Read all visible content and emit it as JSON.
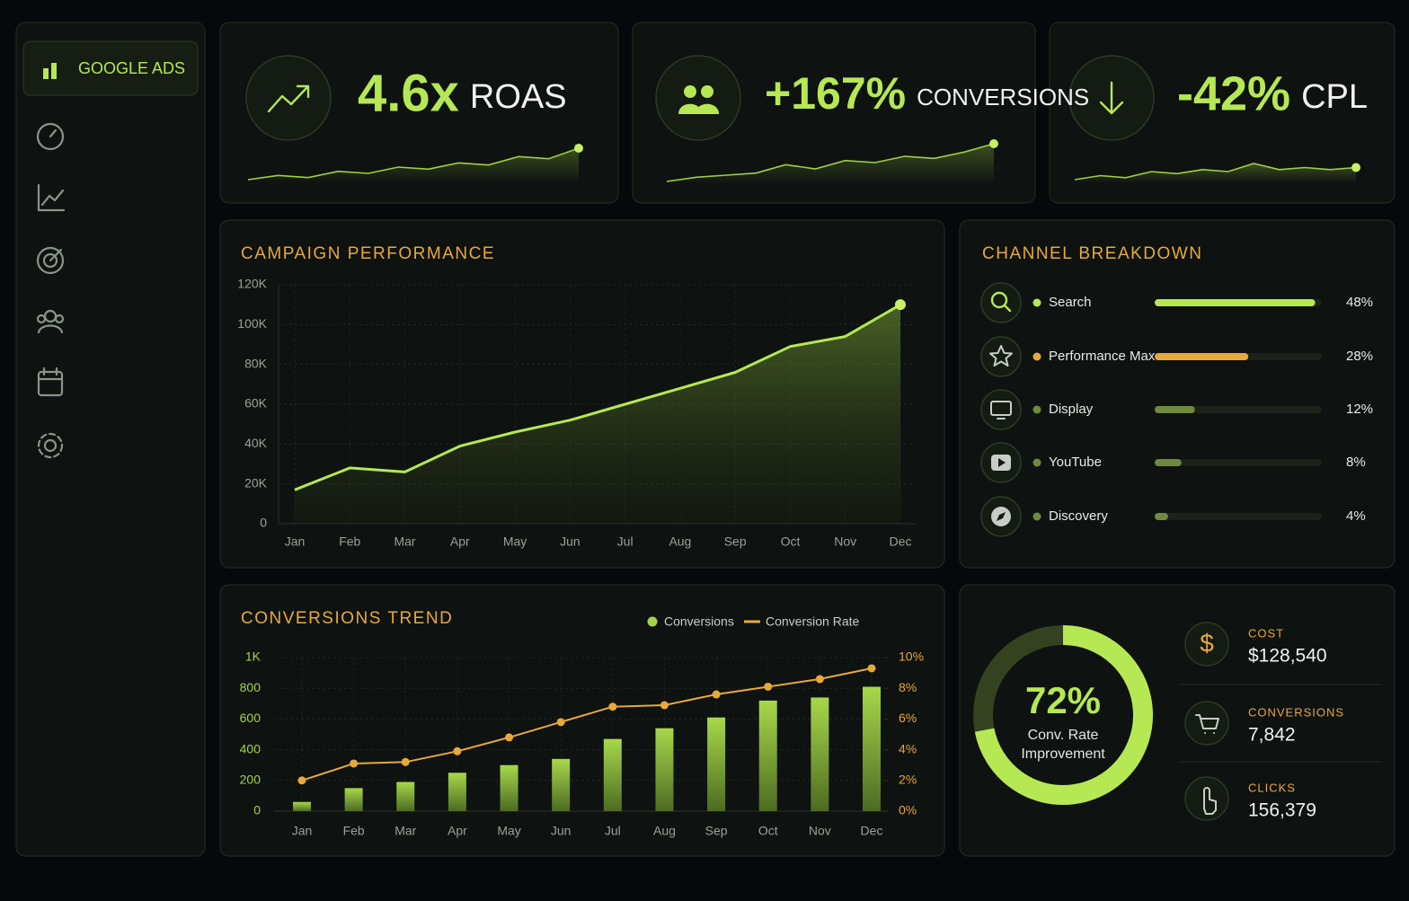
{
  "sidebar": {
    "brand": "GOOGLE ADS"
  },
  "kpis": [
    {
      "value": "4.6x",
      "label": "ROAS",
      "spark": [
        2,
        3,
        2.5,
        4,
        3.5,
        5,
        4.5,
        6,
        5.5,
        7.5,
        7,
        9.5
      ]
    },
    {
      "value": "+167%",
      "label": "CONVERSIONS",
      "spark": [
        1,
        2,
        2.5,
        3,
        5,
        4,
        6,
        5.5,
        7,
        6.5,
        8,
        10
      ]
    },
    {
      "value": "-42%",
      "label": "CPL",
      "spark": [
        3,
        4,
        3.5,
        5,
        4.5,
        5.5,
        5,
        7,
        5.5,
        6,
        5.5,
        6
      ]
    }
  ],
  "campaign_performance": {
    "type": "line",
    "title": "CAMPAIGN PERFORMANCE",
    "categories": [
      "Jan",
      "Feb",
      "Mar",
      "Apr",
      "May",
      "Jun",
      "Jul",
      "Aug",
      "Sep",
      "Oct",
      "Nov",
      "Dec"
    ],
    "values": [
      17000,
      28000,
      26000,
      39000,
      46000,
      52000,
      60000,
      68000,
      76000,
      89000,
      94000,
      110000
    ],
    "color": "#b5e853",
    "ylim": [
      0,
      120000
    ],
    "yticks": [
      0,
      {
        "value": 20000,
        "label": "20K"
      },
      {
        "value": 40000,
        "label": "40K"
      },
      {
        "value": 60000,
        "label": "60K"
      },
      {
        "value": 80000,
        "label": "80K"
      },
      {
        "value": 100000,
        "label": "100K"
      },
      {
        "value": 120000,
        "label": "120K"
      }
    ],
    "grid": true
  },
  "channel_breakdown": {
    "type": "bar",
    "title": "CHANNEL BREAKDOWN",
    "categories": [
      "Search",
      "Performance Max",
      "Display",
      "YouTube",
      "Discovery"
    ],
    "values": [
      48,
      28,
      12,
      8,
      4
    ],
    "value_labels": [
      "48%",
      "28%",
      "12%",
      "8%",
      "4%"
    ],
    "colors": [
      "#b5e853",
      "#e8a93a",
      "#6f8a3c",
      "#6f8a3c",
      "#6f8a3c"
    ],
    "xlim": [
      0,
      50
    ]
  },
  "conversions_trend": {
    "type": "bar",
    "title": "CONVERSIONS TREND",
    "categories": [
      "Jan",
      "Feb",
      "Mar",
      "Apr",
      "May",
      "Jun",
      "Jul",
      "Aug",
      "Sep",
      "Oct",
      "Nov",
      "Dec"
    ],
    "series": [
      {
        "name": "Conversions",
        "color": "#a4d445",
        "values": [
          60,
          150,
          190,
          250,
          300,
          340,
          470,
          540,
          610,
          720,
          740,
          810
        ]
      },
      {
        "name": "Conversion Rate",
        "color": "#e8a93a",
        "axis": "y2",
        "values": [
          2.0,
          3.1,
          3.2,
          3.9,
          4.8,
          5.8,
          6.8,
          6.9,
          7.6,
          8.1,
          8.6,
          9.3
        ]
      }
    ],
    "ylim": [
      0,
      1000
    ],
    "yticks": [
      0,
      200,
      400,
      600,
      800,
      {
        "value": 1000,
        "label": "1K"
      }
    ],
    "y2lim": [
      0,
      10
    ],
    "y2ticks": [
      {
        "value": 0,
        "label": "0%"
      },
      {
        "value": 2,
        "label": "2%"
      },
      {
        "value": 4,
        "label": "4%"
      },
      {
        "value": 6,
        "label": "6%"
      },
      {
        "value": 8,
        "label": "8%"
      },
      {
        "value": 10,
        "label": "10%"
      }
    ]
  },
  "summary": {
    "type": "pie",
    "value": 72,
    "value_label": "72%",
    "label": "Conv. Rate Improvement",
    "color": "#b5e853",
    "stats": [
      {
        "label": "COST",
        "value": "$128,540"
      },
      {
        "label": "CONVERSIONS",
        "value": "7,842"
      },
      {
        "label": "CLICKS",
        "value": "156,379"
      }
    ]
  }
}
